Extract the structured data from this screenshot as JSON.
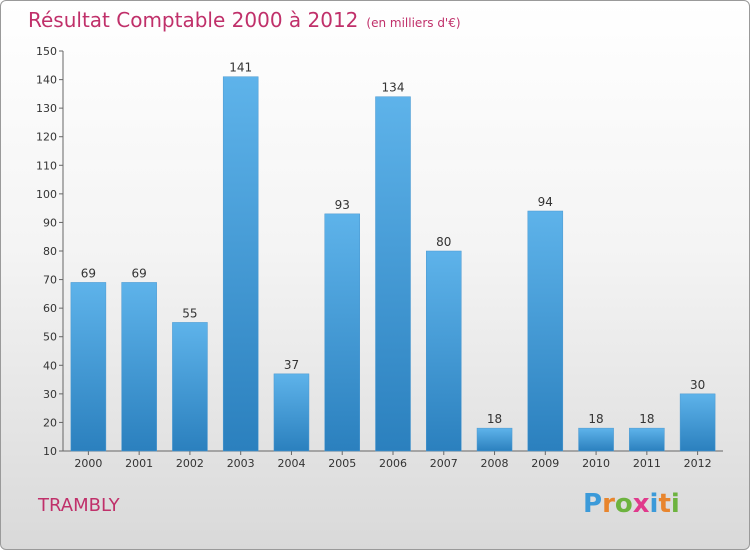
{
  "header": {
    "title": "Résultat Comptable 2000 à 2012",
    "subtitle": "(en milliers d'€)"
  },
  "footer": {
    "commune": "TRAMBLY",
    "logo_letters": [
      "P",
      "r",
      "o",
      "x",
      "i",
      "t",
      "i"
    ],
    "logo_colors": [
      "#3b9ad9",
      "#e8852d",
      "#6db33f",
      "#e03a8c",
      "#3b9ad9",
      "#e8852d",
      "#6db33f"
    ]
  },
  "colors": {
    "bar_top": "#5eb3ea",
    "bar_bottom": "#2b80be",
    "accent": "#c0306a"
  },
  "chart_data": {
    "type": "bar",
    "title": "Résultat Comptable 2000 à 2012",
    "subtitle": "(en milliers d'€)",
    "categories": [
      "2000",
      "2001",
      "2002",
      "2003",
      "2004",
      "2005",
      "2006",
      "2007",
      "2008",
      "2009",
      "2010",
      "2011",
      "2012"
    ],
    "values": [
      69,
      69,
      55,
      141,
      37,
      93,
      134,
      80,
      18,
      94,
      18,
      18,
      30
    ],
    "xlabel": "",
    "ylabel": "",
    "ylim": [
      10,
      150
    ],
    "yticks": [
      10,
      20,
      30,
      40,
      50,
      60,
      70,
      80,
      90,
      100,
      110,
      120,
      130,
      140,
      150
    ],
    "grid": false
  }
}
